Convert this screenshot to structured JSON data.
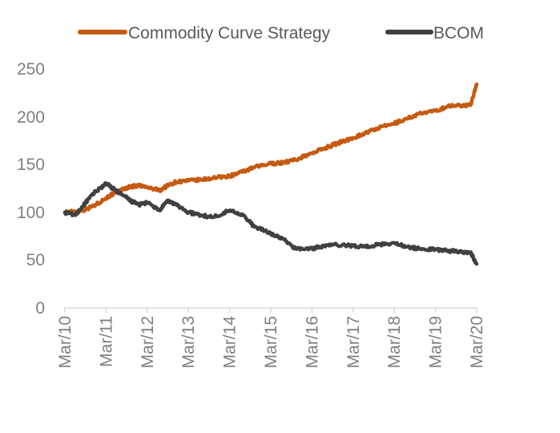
{
  "chart_data": {
    "type": "line",
    "title": "",
    "xlabel": "",
    "ylabel": "",
    "ylim": [
      0,
      250
    ],
    "yticks": [
      "0",
      "50",
      "100",
      "150",
      "200",
      "250"
    ],
    "ytick_values": [
      0,
      50,
      100,
      150,
      200,
      250
    ],
    "categories": [
      "Mar/10",
      "Mar/11",
      "Mar/12",
      "Mar/13",
      "Mar/14",
      "Mar/15",
      "Mar/16",
      "Mar/17",
      "Mar/18",
      "Mar/19",
      "Mar/20"
    ],
    "x": [
      2010.0,
      2010.25,
      2010.5,
      2010.75,
      2011.0,
      2011.2,
      2011.4,
      2011.6,
      2011.8,
      2012.0,
      2012.3,
      2012.5,
      2012.7,
      2013.0,
      2013.3,
      2013.6,
      2014.0,
      2014.3,
      2014.6,
      2015.0,
      2015.3,
      2015.6,
      2016.0,
      2016.3,
      2016.6,
      2017.0,
      2017.3,
      2017.6,
      2018.0,
      2018.3,
      2018.6,
      2019.0,
      2019.3,
      2019.6,
      2019.85,
      2020.0
    ],
    "legend_position": "top",
    "grid": false,
    "series": [
      {
        "name": "Commodity Curve Strategy",
        "color": "#c55a11",
        "values": [
          100,
          101,
          103,
          108,
          115,
          120,
          124,
          127,
          128,
          126,
          123,
          128,
          132,
          133,
          134,
          136,
          138,
          142,
          147,
          151,
          152,
          155,
          162,
          167,
          172,
          178,
          183,
          188,
          193,
          198,
          203,
          206,
          211,
          212,
          212,
          234
        ]
      },
      {
        "name": "BCOM",
        "color": "#404040",
        "values": [
          100,
          97,
          110,
          122,
          130,
          124,
          118,
          112,
          108,
          110,
          102,
          112,
          108,
          100,
          97,
          95,
          102,
          98,
          85,
          78,
          72,
          62,
          62,
          65,
          66,
          65,
          64,
          66,
          68,
          64,
          62,
          61,
          60,
          59,
          58,
          46
        ]
      }
    ]
  }
}
